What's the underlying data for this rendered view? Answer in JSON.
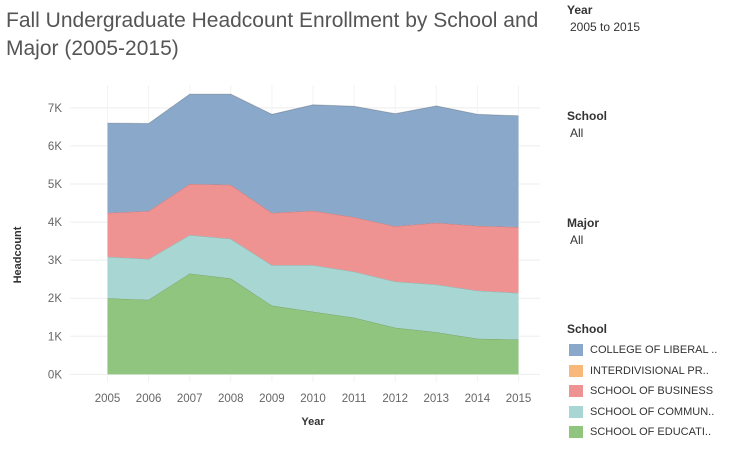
{
  "filters": {
    "year": {
      "label": "Year",
      "value": "2005 to 2015"
    },
    "school": {
      "label": "School",
      "value": "All"
    },
    "major": {
      "label": "Major",
      "value": "All"
    }
  },
  "chart_data": {
    "type": "area",
    "stacked": true,
    "title": "Fall Undergraduate Headcount Enrollment by School and Major (2005-2015)",
    "xlabel": "Year",
    "ylabel": "Headcount",
    "x": [
      "2005",
      "2006",
      "2007",
      "2008",
      "2009",
      "2010",
      "2011",
      "2012",
      "2013",
      "2014",
      "2015"
    ],
    "ylim": [
      -200,
      7600
    ],
    "yticks": [
      0,
      1000,
      2000,
      3000,
      4000,
      5000,
      6000,
      7000
    ],
    "ytick_labels": [
      "0K",
      "1K",
      "2K",
      "3K",
      "4K",
      "5K",
      "6K",
      "7K"
    ],
    "grid": true,
    "legend": {
      "title": "School",
      "position": "right"
    },
    "series": [
      {
        "name": "SCHOOL OF EDUCATI..",
        "color": "#8fc57f",
        "values": [
          2000,
          1960,
          2650,
          2520,
          1810,
          1650,
          1490,
          1230,
          1110,
          940,
          920
        ]
      },
      {
        "name": "SCHOOL OF COMMUN..",
        "color": "#a8d6d3",
        "values": [
          1090,
          1070,
          1010,
          1040,
          1060,
          1220,
          1210,
          1210,
          1250,
          1260,
          1220
        ]
      },
      {
        "name": "SCHOOL OF BUSINESS",
        "color": "#ef9392",
        "values": [
          1150,
          1260,
          1340,
          1420,
          1370,
          1430,
          1430,
          1450,
          1620,
          1700,
          1730
        ]
      },
      {
        "name": "INTERDIVISIONAL PR..",
        "color": "#f7b87a",
        "values": [
          0,
          0,
          0,
          0,
          0,
          0,
          0,
          0,
          0,
          0,
          0
        ]
      },
      {
        "name": "COLLEGE OF LIBERAL ..",
        "color": "#8aa8c9",
        "values": [
          2360,
          2300,
          2360,
          2380,
          2590,
          2780,
          2910,
          2960,
          3070,
          2930,
          2920
        ]
      }
    ],
    "legend_order": [
      "COLLEGE OF LIBERAL ..",
      "INTERDIVISIONAL PR..",
      "SCHOOL OF BUSINESS",
      "SCHOOL OF COMMUN..",
      "SCHOOL OF EDUCATI.."
    ]
  }
}
